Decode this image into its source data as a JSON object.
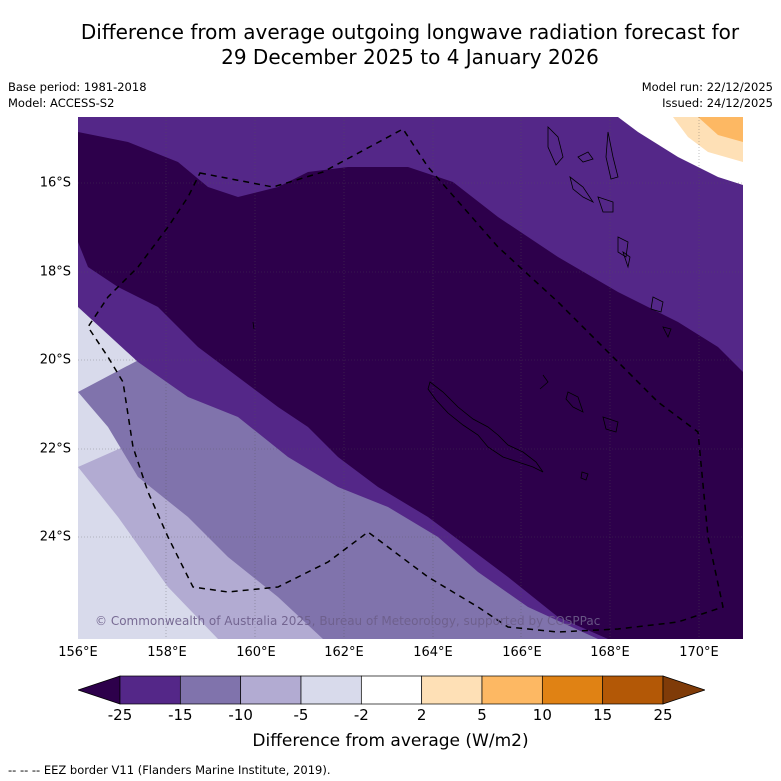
{
  "title_line1": "Difference from average outgoing longwave radiation forecast for",
  "title_line2": "29 December 2025 to 4 January 2026",
  "meta": {
    "base_period": "Base period: 1981-2018",
    "model": "Model: ACCESS-S2",
    "model_run": "Model run: 22/12/2025",
    "issued": "Issued: 24/12/2025"
  },
  "map": {
    "lon_range": [
      156,
      171
    ],
    "lat_range": [
      -26.2,
      -14.7
    ],
    "lat_ticks": [
      {
        "value": -16,
        "label": "16°S"
      },
      {
        "value": -18,
        "label": "18°S"
      },
      {
        "value": -20,
        "label": "20°S"
      },
      {
        "value": -22,
        "label": "22°S"
      },
      {
        "value": -24,
        "label": "24°S"
      }
    ],
    "lon_ticks": [
      {
        "value": 156,
        "label": "156°E"
      },
      {
        "value": 158,
        "label": "158°E"
      },
      {
        "value": 160,
        "label": "160°E"
      },
      {
        "value": 162,
        "label": "162°E"
      },
      {
        "value": 164,
        "label": "164°E"
      },
      {
        "value": 166,
        "label": "166°E"
      },
      {
        "value": 168,
        "label": "168°E"
      },
      {
        "value": 170,
        "label": "170°E"
      }
    ],
    "copyright": "© Commonwealth of Australia 2025, Bureau of Meteorology, supported by COSPPac"
  },
  "colorbar": {
    "title": "Difference from average (W/m2)",
    "under_color": "#2d004b",
    "over_color": "#7f3b08",
    "bins": [
      {
        "from": -25,
        "to": -15,
        "color": "#542788"
      },
      {
        "from": -15,
        "to": -10,
        "color": "#8073ac"
      },
      {
        "from": -10,
        "to": -5,
        "color": "#b2abd2"
      },
      {
        "from": -5,
        "to": -2,
        "color": "#d8daeb"
      },
      {
        "from": -2,
        "to": 2,
        "color": "#ffffff"
      },
      {
        "from": 2,
        "to": 5,
        "color": "#fee0b6"
      },
      {
        "from": 5,
        "to": 10,
        "color": "#fdb863"
      },
      {
        "from": 10,
        "to": 15,
        "color": "#e08214"
      },
      {
        "from": 15,
        "to": 25,
        "color": "#b35806"
      }
    ],
    "tick_labels": [
      "-25",
      "-15",
      "-10",
      "-5",
      "-2",
      "2",
      "5",
      "10",
      "15",
      "25"
    ]
  },
  "footnote": "--  --  -- EEZ border V11 (Flanders Marine Institute, 2019)."
}
